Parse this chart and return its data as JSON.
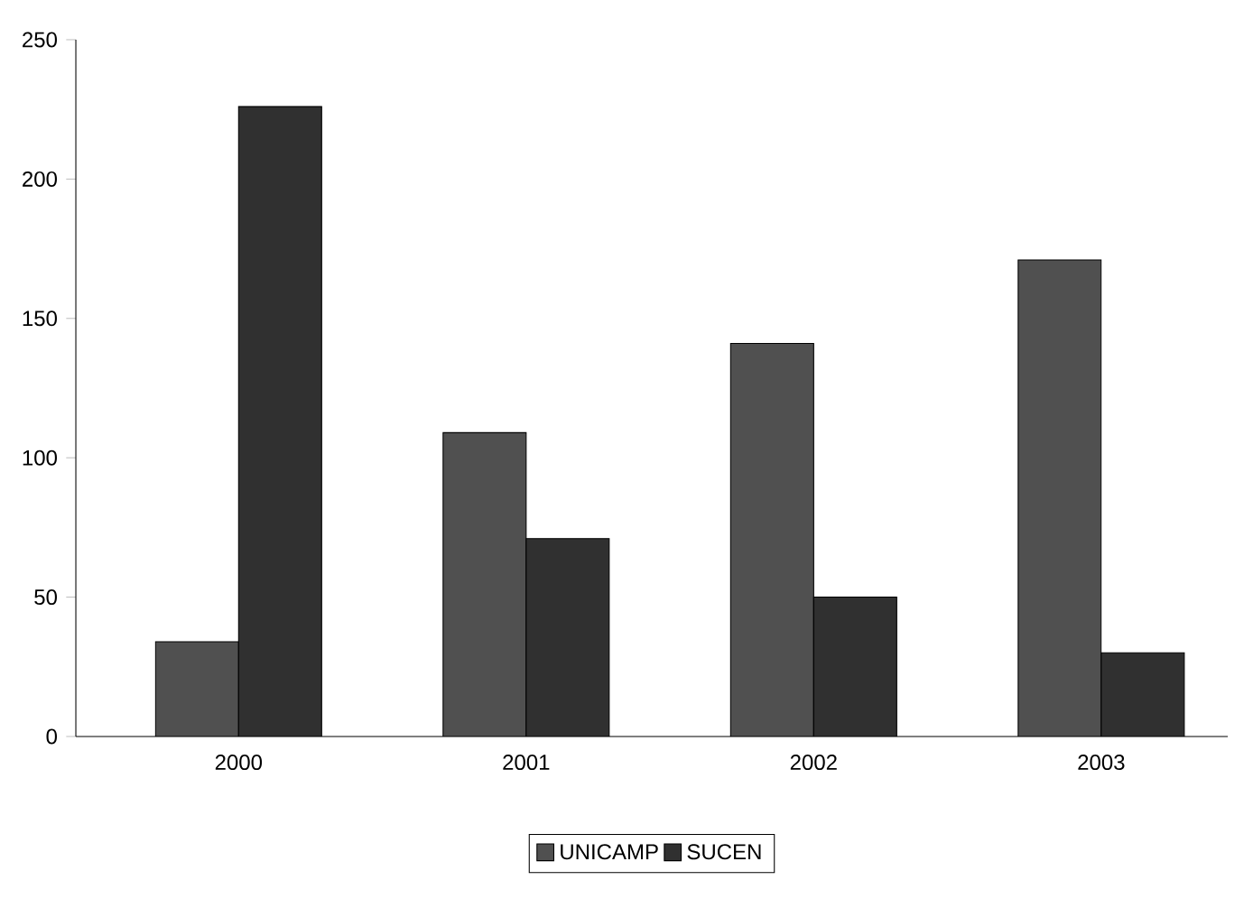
{
  "chart_data": {
    "type": "bar",
    "categories": [
      "2000",
      "2001",
      "2002",
      "2003"
    ],
    "series": [
      {
        "name": "UNICAMP",
        "color": "#505050",
        "values": [
          34,
          109,
          141,
          171
        ]
      },
      {
        "name": "SUCEN",
        "color": "#303030",
        "values": [
          226,
          71,
          50,
          30
        ]
      }
    ],
    "ylim": [
      0,
      250
    ],
    "yticks": [
      0,
      50,
      100,
      150,
      200,
      250
    ],
    "grid": false,
    "legend": "bottom"
  }
}
